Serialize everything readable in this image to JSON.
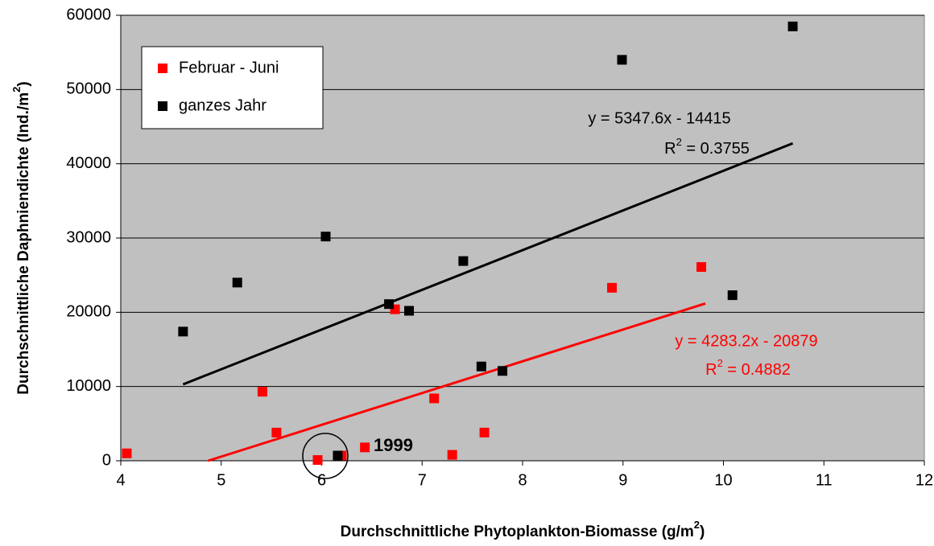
{
  "chart_data": {
    "type": "scatter",
    "xlabel": "Durchschnittliche Phytoplankton-Biomasse (g/m",
    "xlabel_sup": "2",
    "xlabel_end": ")",
    "ylabel": "Durchschnittliche Daphniendichte (Ind./m",
    "ylabel_sup": "2",
    "ylabel_end": ")",
    "xlim": [
      4,
      12
    ],
    "xticks": [
      4,
      5,
      6,
      7,
      8,
      9,
      10,
      11,
      12
    ],
    "ylim": [
      0,
      60000
    ],
    "yticks": [
      0,
      10000,
      20000,
      30000,
      40000,
      50000,
      60000
    ],
    "grid": true,
    "background": "#c0c0c0",
    "legend": "upper left",
    "series": [
      {
        "name": "Februar - Juni",
        "color": "#ff0000",
        "x": [
          4.06,
          5.41,
          5.55,
          5.96,
          6.2,
          6.43,
          6.73,
          7.12,
          7.3,
          7.62,
          8.89,
          9.78
        ],
        "values": [
          1000,
          9300,
          3800,
          100,
          700,
          1800,
          20400,
          8400,
          800,
          3800,
          23300,
          26100
        ]
      },
      {
        "name": "ganzes Jahr",
        "color": "#000000",
        "x": [
          4.62,
          5.16,
          6.04,
          6.16,
          6.67,
          6.87,
          7.41,
          7.59,
          7.8,
          8.99,
          10.09,
          10.69
        ],
        "values": [
          17400,
          24000,
          30200,
          700,
          21100,
          20200,
          26900,
          12700,
          12100,
          54000,
          22300,
          58500
        ]
      }
    ],
    "trendlines": [
      {
        "color": "#000000",
        "x": [
          4.62,
          10.69
        ],
        "values": [
          10290,
          42750
        ],
        "equation": "y = 5347.6x - 14415",
        "r2_prefix": "R",
        "r2_sup": "2",
        "r2_value": " = 0.3755"
      },
      {
        "color": "#ff0000",
        "x": [
          4.87,
          9.82
        ],
        "values": [
          0,
          21183
        ],
        "equation": "y = 4283.2x - 20879",
        "r2_prefix": "R",
        "r2_sup": "2",
        "r2_value": " = 0.4882"
      }
    ],
    "annotation": "1999"
  }
}
